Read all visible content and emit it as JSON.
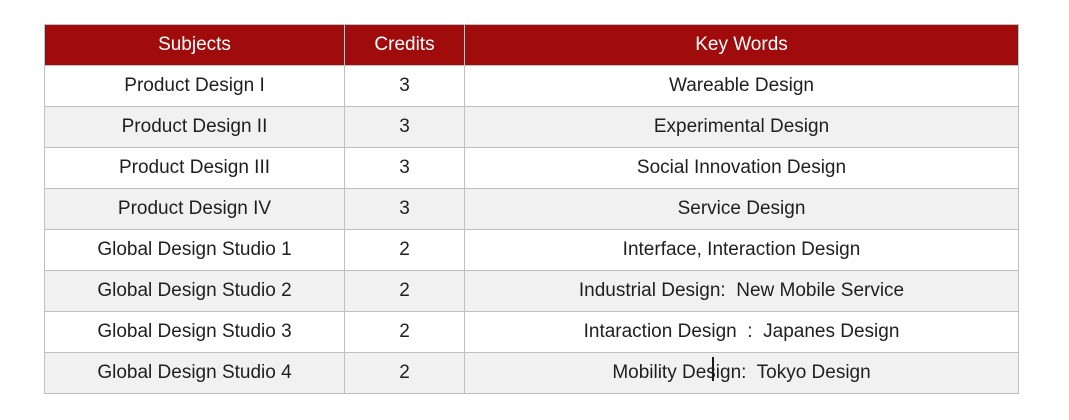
{
  "table": {
    "columns": [
      "Subjects",
      "Credits",
      "Key Words"
    ],
    "rows": [
      {
        "subject": "Product Design I",
        "credits": "3",
        "keywords": "Wareable Design"
      },
      {
        "subject": "Product Design II",
        "credits": "3",
        "keywords": "Experimental Design"
      },
      {
        "subject": "Product Design III",
        "credits": "3",
        "keywords": "Social Innovation Design"
      },
      {
        "subject": "Product Design IV",
        "credits": "3",
        "keywords": "Service Design"
      },
      {
        "subject": "Global Design Studio 1",
        "credits": "2",
        "keywords": "Interface, Interaction Design"
      },
      {
        "subject": "Global Design Studio 2",
        "credits": "2",
        "keywords": "Industrial Design:  New Mobile Service"
      },
      {
        "subject": "Global Design Studio 3",
        "credits": "2",
        "keywords": "Intaraction Design  :  Japanes Design"
      },
      {
        "subject": "Global Design Studio 4",
        "credits": "2",
        "keywords": "Mobility Design:  Tokyo Design"
      }
    ]
  },
  "caret": {
    "visible": true,
    "location": "keywords cell of 'Global Design Studio 4' row, between 'Mobility Desi' and 'gn'"
  },
  "colors": {
    "header_bg": "#a00c0c",
    "header_text": "#ffffff",
    "row_alt_bg": "#f1f1f1",
    "border": "#bfbfbf",
    "text": "#1f1f1f"
  },
  "chart_data": {
    "type": "table",
    "title": "",
    "columns": [
      "Subjects",
      "Credits",
      "Key Words"
    ],
    "rows": [
      [
        "Product Design I",
        3,
        "Wareable Design"
      ],
      [
        "Product Design II",
        3,
        "Experimental Design"
      ],
      [
        "Product Design III",
        3,
        "Social Innovation Design"
      ],
      [
        "Product Design IV",
        3,
        "Service Design"
      ],
      [
        "Global Design Studio 1",
        2,
        "Interface, Interaction Design"
      ],
      [
        "Global Design Studio 2",
        2,
        "Industrial Design: New Mobile Service"
      ],
      [
        "Global Design Studio 3",
        2,
        "Intaraction Design : Japanes Design"
      ],
      [
        "Global Design Studio 4",
        2,
        "Mobility Design: Tokyo Design"
      ]
    ],
    "layout_hints": {
      "header_fill": "#a00c0c",
      "header_text_color": "#ffffff",
      "banded_rows": true,
      "grid": true
    }
  }
}
